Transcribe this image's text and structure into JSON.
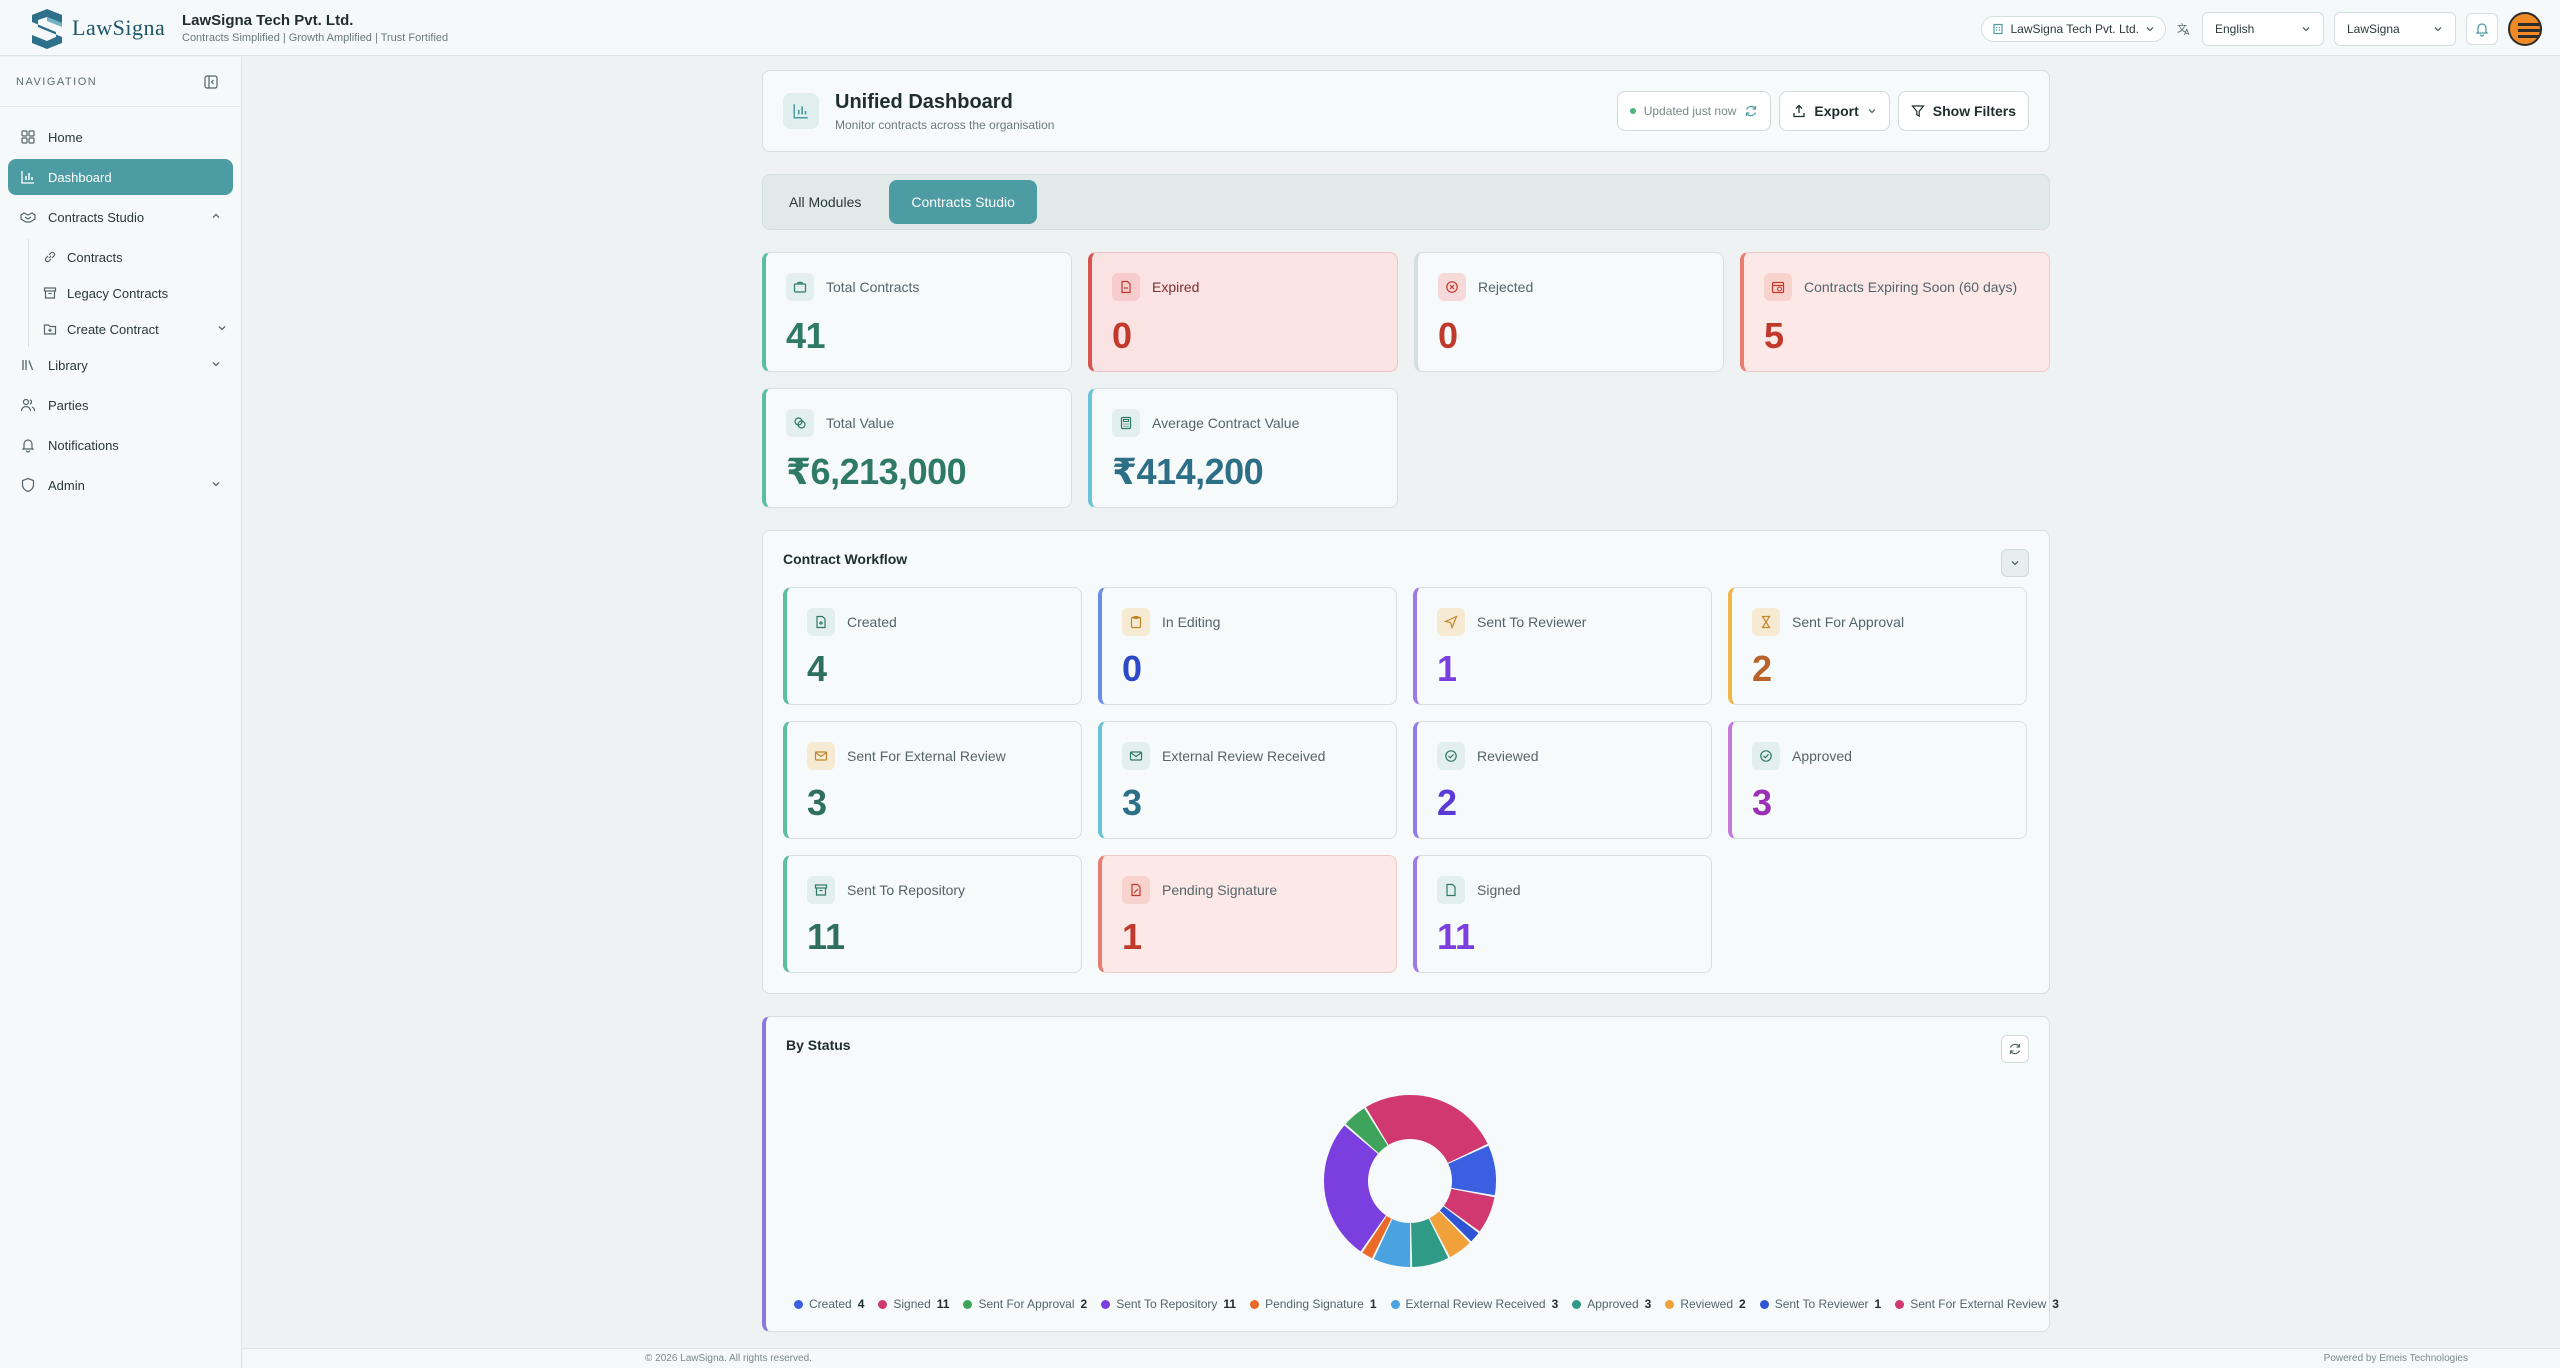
{
  "brand": {
    "logo_text": "LawSigna",
    "org_name": "LawSigna Tech Pvt. Ltd.",
    "tagline": "Contracts Simplified | Growth Amplified | Trust Fortified"
  },
  "topbar": {
    "org_select": "LawSigna Tech Pvt. Ltd.",
    "language": "English",
    "workspace": "LawSigna"
  },
  "sidebar": {
    "heading": "NAVIGATION",
    "items": [
      {
        "label": "Home",
        "icon": "grid-icon"
      },
      {
        "label": "Dashboard",
        "icon": "bar-chart-icon"
      },
      {
        "label": "Contracts Studio",
        "icon": "handshake-icon"
      },
      {
        "label": "Library",
        "icon": "library-icon"
      },
      {
        "label": "Parties",
        "icon": "users-icon"
      },
      {
        "label": "Notifications",
        "icon": "bell-icon"
      },
      {
        "label": "Admin",
        "icon": "shield-icon"
      }
    ],
    "sub_items": [
      {
        "label": "Contracts",
        "icon": "link-icon"
      },
      {
        "label": "Legacy Contracts",
        "icon": "archive-icon"
      },
      {
        "label": "Create Contract",
        "icon": "folder-plus-icon"
      }
    ]
  },
  "header": {
    "title": "Unified Dashboard",
    "subtitle": "Monitor contracts across the organisation",
    "status": "Updated just now",
    "export_label": "Export",
    "filters_label": "Show Filters"
  },
  "tabs": [
    {
      "label": "All Modules"
    },
    {
      "label": "Contracts Studio"
    }
  ],
  "stats": [
    {
      "label": "Total Contracts",
      "value": "41",
      "color": "#2f7a66"
    },
    {
      "label": "Expired",
      "value": "0",
      "color": "#c0392b"
    },
    {
      "label": "Rejected",
      "value": "0",
      "color": "#c0392b"
    },
    {
      "label": "Contracts Expiring Soon (60 days)",
      "value": "5",
      "color": "#c0392b"
    },
    {
      "label": "Total Value",
      "value": "₹6,213,000",
      "color": "#2f7a66"
    },
    {
      "label": "Average Contract Value",
      "value": "₹414,200",
      "color": "#2c6f86"
    }
  ],
  "workflow": {
    "title": "Contract Workflow",
    "cards": [
      {
        "label": "Created",
        "value": "4"
      },
      {
        "label": "In Editing",
        "value": "0"
      },
      {
        "label": "Sent To Reviewer",
        "value": "1"
      },
      {
        "label": "Sent For Approval",
        "value": "2"
      },
      {
        "label": "Sent For External Review",
        "value": "3"
      },
      {
        "label": "External Review Received",
        "value": "3"
      },
      {
        "label": "Reviewed",
        "value": "2"
      },
      {
        "label": "Approved",
        "value": "3"
      },
      {
        "label": "Sent To Repository",
        "value": "11"
      },
      {
        "label": "Pending Signature",
        "value": "1"
      },
      {
        "label": "Signed",
        "value": "11"
      }
    ]
  },
  "by_status": {
    "title": "By Status"
  },
  "chart_data": {
    "type": "pie",
    "title": "By Status",
    "categories": [
      "Created",
      "Signed",
      "Sent For Approval",
      "Sent To Repository",
      "Pending Signature",
      "External Review Received",
      "Approved",
      "Reviewed",
      "Sent To Reviewer",
      "Sent For External Review"
    ],
    "values": [
      4,
      11,
      2,
      11,
      1,
      3,
      3,
      2,
      1,
      3
    ],
    "colors": [
      "#3b5fe0",
      "#d0386f",
      "#3fa45b",
      "#7b3fe0",
      "#ea6a2a",
      "#4aa3df",
      "#2f9a86",
      "#f0a13a",
      "#2f55d4",
      "#d0386f"
    ],
    "legend": "bottom"
  },
  "footer": {
    "left": "© 2026 LawSigna. All rights reserved.",
    "right": "Powered by Emeis Technologies"
  }
}
